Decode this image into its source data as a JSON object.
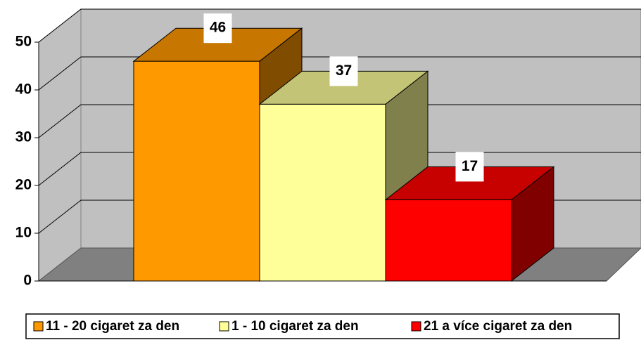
{
  "chart_data": {
    "type": "bar3d",
    "series": [
      {
        "name": "11 - 20 cigaret za den",
        "color": "#FF9900",
        "values": [
          46
        ]
      },
      {
        "name": "1 - 10 cigaret za den",
        "color": "#FFFF99",
        "values": [
          37
        ]
      },
      {
        "name": "21 a více cigaret za den",
        "color": "#FF0000",
        "values": [
          17
        ]
      }
    ],
    "ylim": [
      0,
      50
    ],
    "yticks": [
      0,
      10,
      20,
      30,
      40,
      50
    ],
    "grid": true,
    "legend": "bottom"
  }
}
